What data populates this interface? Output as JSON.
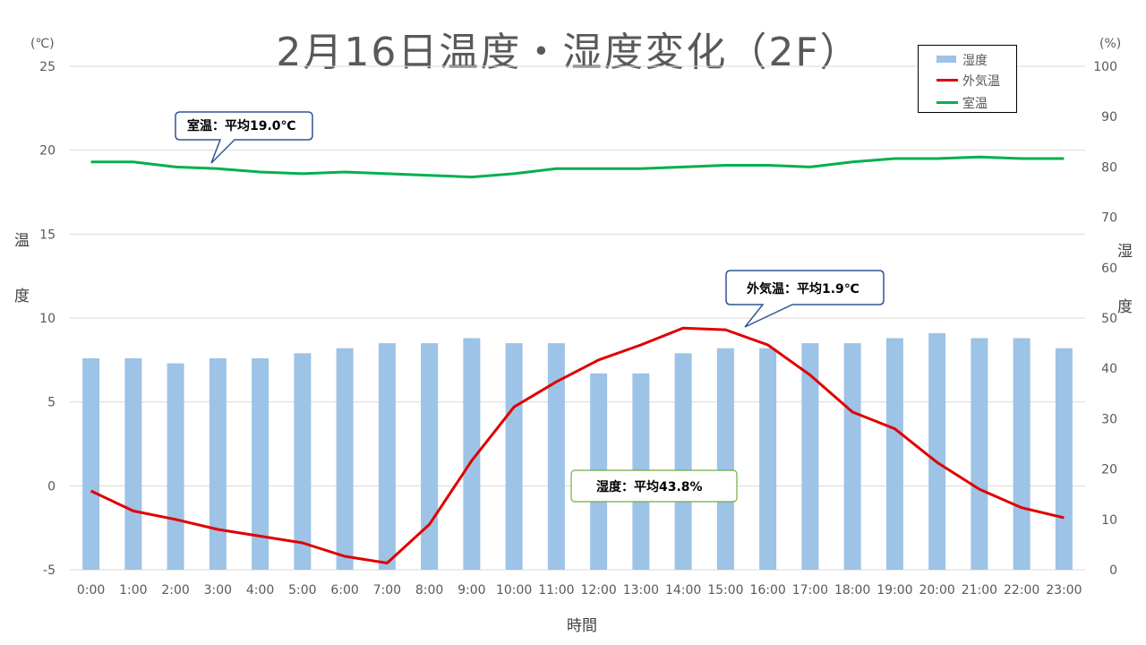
{
  "chart_data": {
    "type": "bar+line",
    "title": "2月16日温度・湿度変化（2F）",
    "xlabel": "時間",
    "ylabel_left": "温度",
    "ylabel_right": "湿度",
    "unit_left": "(℃)",
    "unit_right": "(%)",
    "ylim_left": [
      -5,
      25
    ],
    "ylim_right": [
      0,
      100
    ],
    "yticks_left": [
      "25",
      "20",
      "15",
      "10",
      "5",
      "0",
      "-5"
    ],
    "yticks_right": [
      "100",
      "90",
      "80",
      "70",
      "60",
      "50",
      "40",
      "30",
      "20",
      "10",
      "0"
    ],
    "grid": true,
    "legend_position": "top-right",
    "categories": [
      "0:00",
      "1:00",
      "2:00",
      "3:00",
      "4:00",
      "5:00",
      "6:00",
      "7:00",
      "8:00",
      "9:00",
      "10:00",
      "11:00",
      "12:00",
      "13:00",
      "14:00",
      "15:00",
      "16:00",
      "17:00",
      "18:00",
      "19:00",
      "20:00",
      "21:00",
      "22:00",
      "23:00"
    ],
    "series": [
      {
        "name": "湿度",
        "type": "bar",
        "axis": "right",
        "color": "#9dc3e6",
        "values": [
          42,
          42,
          41,
          42,
          42,
          43,
          44,
          45,
          45,
          46,
          45,
          45,
          39,
          39,
          43,
          44,
          44,
          45,
          45,
          46,
          47,
          46,
          46,
          44
        ]
      },
      {
        "name": "外気温",
        "type": "line",
        "axis": "left",
        "color": "#e00000",
        "values": [
          -0.3,
          -1.5,
          -2.0,
          -2.6,
          -3.0,
          -3.4,
          -4.2,
          -4.6,
          -2.3,
          1.5,
          4.7,
          6.2,
          7.5,
          8.4,
          9.4,
          9.3,
          8.4,
          6.6,
          4.4,
          3.4,
          1.4,
          -0.2,
          -1.3,
          -1.9
        ]
      },
      {
        "name": "室温",
        "type": "line",
        "axis": "left",
        "color": "#00b050",
        "values": [
          19.3,
          19.3,
          19.0,
          18.9,
          18.7,
          18.6,
          18.7,
          18.6,
          18.5,
          18.4,
          18.6,
          18.9,
          18.9,
          18.9,
          19.0,
          19.1,
          19.1,
          19.0,
          19.3,
          19.5,
          19.5,
          19.6,
          19.5,
          19.5
        ]
      }
    ],
    "annotations": [
      {
        "text": "室温：平均19.0℃",
        "border": "#2f5597"
      },
      {
        "text": "外気温：平均1.9℃",
        "border": "#2f5597"
      },
      {
        "text": "湿度：平均43.8%",
        "border": "#70ad47"
      }
    ]
  }
}
